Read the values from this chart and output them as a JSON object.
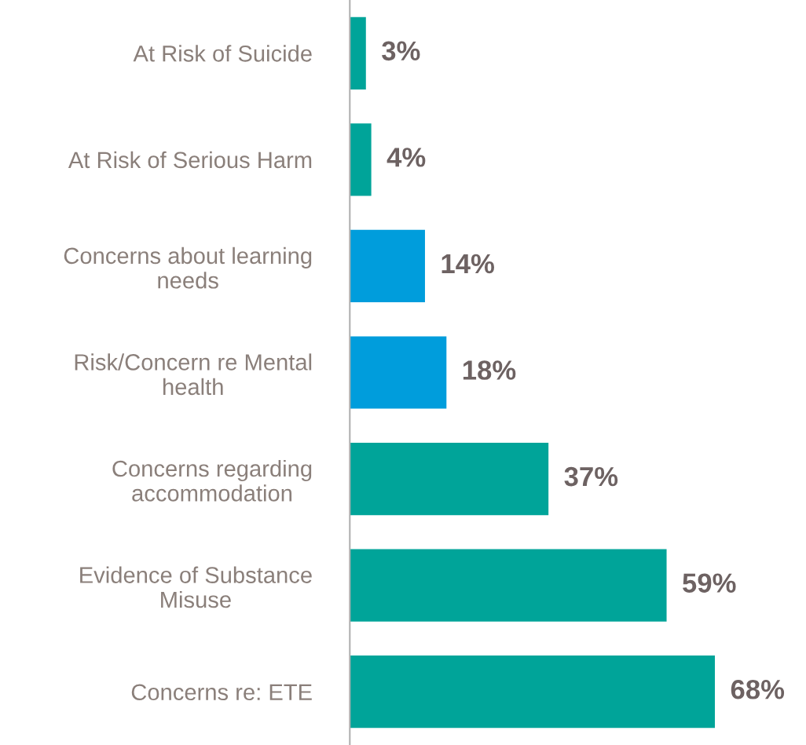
{
  "chart_data": {
    "type": "bar",
    "orientation": "horizontal",
    "categories": [
      "At Risk of Suicide",
      "At Risk of Serious Harm",
      "Concerns about learning\nneeds",
      "Risk/Concern re Mental\nhealth",
      "Concerns regarding\naccommodation",
      "Evidence of Substance\nMisuse",
      "Concerns re: ETE"
    ],
    "values": [
      3,
      4,
      14,
      18,
      37,
      59,
      68
    ],
    "colors": [
      "#00a499",
      "#00a499",
      "#009ddc",
      "#009ddc",
      "#00a499",
      "#00a499",
      "#00a499"
    ],
    "value_labels": [
      "3%",
      "4%",
      "14%",
      "18%",
      "37%",
      "59%",
      "68%"
    ],
    "grid": false,
    "legend": false
  }
}
